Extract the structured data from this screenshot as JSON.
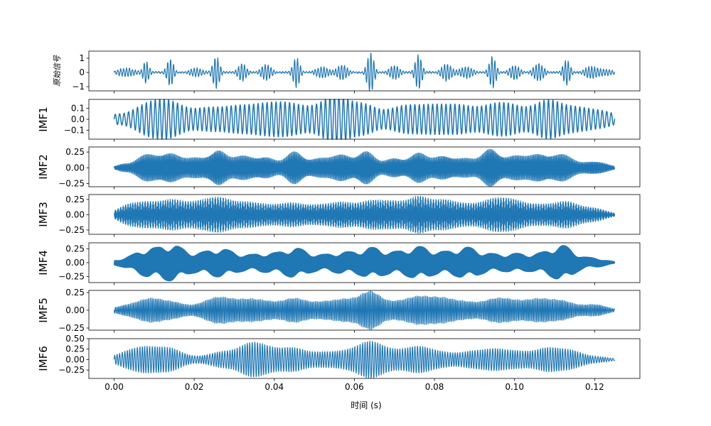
{
  "chart_data": {
    "type": "line",
    "line_color": "#1f77b4",
    "xlabel": "时间 (s)",
    "xlim": [
      -0.0063,
      0.1313
    ],
    "x_ticks": [
      0.0,
      0.02,
      0.04,
      0.06,
      0.08,
      0.1,
      0.12
    ],
    "x_tick_labels": [
      "0.00",
      "0.02",
      "0.04",
      "0.06",
      "0.08",
      "0.10",
      "0.12"
    ],
    "grid": false,
    "panels": [
      {
        "ylabel": "原始信号",
        "ylim": [
          -1.3,
          1.5
        ],
        "y_ticks": [
          -1,
          0,
          1
        ],
        "y_tick_labels": [
          "−1",
          "0",
          "1"
        ],
        "carrier_cycles": 170,
        "noise_level": 0.06,
        "bursts": [
          {
            "t": 0.003,
            "a": 0.3,
            "w": 0.002
          },
          {
            "t": 0.008,
            "a": 0.75,
            "w": 0.0007
          },
          {
            "t": 0.014,
            "a": 0.95,
            "w": 0.0008
          },
          {
            "t": 0.0205,
            "a": 0.3,
            "w": 0.0015
          },
          {
            "t": 0.0255,
            "a": 1.1,
            "w": 0.0008
          },
          {
            "t": 0.032,
            "a": 0.6,
            "w": 0.001
          },
          {
            "t": 0.038,
            "a": 0.55,
            "w": 0.0012
          },
          {
            "t": 0.0455,
            "a": 1.05,
            "w": 0.0008
          },
          {
            "t": 0.052,
            "a": 0.4,
            "w": 0.0015
          },
          {
            "t": 0.057,
            "a": 0.55,
            "w": 0.0012
          },
          {
            "t": 0.064,
            "a": 1.4,
            "w": 0.0008
          },
          {
            "t": 0.07,
            "a": 0.5,
            "w": 0.0012
          },
          {
            "t": 0.076,
            "a": 1.2,
            "w": 0.0008
          },
          {
            "t": 0.083,
            "a": 0.6,
            "w": 0.0012
          },
          {
            "t": 0.088,
            "a": 0.4,
            "w": 0.0015
          },
          {
            "t": 0.0945,
            "a": 1.1,
            "w": 0.0008
          },
          {
            "t": 0.1,
            "a": 0.5,
            "w": 0.0012
          },
          {
            "t": 0.106,
            "a": 0.6,
            "w": 0.0012
          },
          {
            "t": 0.113,
            "a": 0.9,
            "w": 0.0008
          },
          {
            "t": 0.119,
            "a": 0.4,
            "w": 0.0015
          },
          {
            "t": 0.123,
            "a": 0.2,
            "w": 0.002
          }
        ],
        "x_range": [
          0.0,
          0.125
        ]
      },
      {
        "ylabel": "IMF1",
        "ylim": [
          -0.18,
          0.18
        ],
        "y_ticks": [
          -0.1,
          0.0,
          0.1
        ],
        "y_tick_labels": [
          "−0.1",
          "0.0",
          "0.1"
        ],
        "carrier_cycles": 112,
        "noise_level": 0.0,
        "bursts": [
          {
            "t": 0.0,
            "a": 0.03,
            "w": 0.002
          },
          {
            "t": 0.0085,
            "a": 0.13,
            "w": 0.004
          },
          {
            "t": 0.0145,
            "a": 0.12,
            "w": 0.0035
          },
          {
            "t": 0.023,
            "a": 0.09,
            "w": 0.0035
          },
          {
            "t": 0.03,
            "a": 0.09,
            "w": 0.0035
          },
          {
            "t": 0.037,
            "a": 0.11,
            "w": 0.004
          },
          {
            "t": 0.044,
            "a": 0.12,
            "w": 0.004
          },
          {
            "t": 0.053,
            "a": 0.1,
            "w": 0.004
          },
          {
            "t": 0.056,
            "a": 0.13,
            "w": 0.003
          },
          {
            "t": 0.0625,
            "a": 0.12,
            "w": 0.003
          },
          {
            "t": 0.072,
            "a": 0.11,
            "w": 0.004
          },
          {
            "t": 0.08,
            "a": 0.11,
            "w": 0.004
          },
          {
            "t": 0.087,
            "a": 0.1,
            "w": 0.0035
          },
          {
            "t": 0.095,
            "a": 0.12,
            "w": 0.0035
          },
          {
            "t": 0.1,
            "a": 0.08,
            "w": 0.003
          },
          {
            "t": 0.108,
            "a": 0.16,
            "w": 0.0035
          },
          {
            "t": 0.116,
            "a": 0.1,
            "w": 0.004
          },
          {
            "t": 0.123,
            "a": 0.05,
            "w": 0.003
          }
        ],
        "x_range": [
          0.0,
          0.125
        ]
      },
      {
        "ylabel": "IMF2",
        "ylim": [
          -0.3,
          0.33
        ],
        "y_ticks": [
          -0.25,
          0.0,
          0.25
        ],
        "y_tick_labels": [
          "−0.25",
          "0.00",
          "0.25"
        ],
        "carrier_cycles": 400,
        "noise_level": 0.0,
        "bursts": [
          {
            "t": 0.002,
            "a": 0.05,
            "w": 0.0015
          },
          {
            "t": 0.008,
            "a": 0.2,
            "w": 0.0025
          },
          {
            "t": 0.014,
            "a": 0.22,
            "w": 0.0025
          },
          {
            "t": 0.0205,
            "a": 0.15,
            "w": 0.0025
          },
          {
            "t": 0.026,
            "a": 0.26,
            "w": 0.002
          },
          {
            "t": 0.032,
            "a": 0.18,
            "w": 0.0025
          },
          {
            "t": 0.038,
            "a": 0.16,
            "w": 0.0025
          },
          {
            "t": 0.045,
            "a": 0.25,
            "w": 0.002
          },
          {
            "t": 0.051,
            "a": 0.14,
            "w": 0.0025
          },
          {
            "t": 0.057,
            "a": 0.2,
            "w": 0.0025
          },
          {
            "t": 0.063,
            "a": 0.25,
            "w": 0.002
          },
          {
            "t": 0.07,
            "a": 0.15,
            "w": 0.0025
          },
          {
            "t": 0.076,
            "a": 0.22,
            "w": 0.002
          },
          {
            "t": 0.082,
            "a": 0.18,
            "w": 0.0025
          },
          {
            "t": 0.088,
            "a": 0.14,
            "w": 0.0025
          },
          {
            "t": 0.094,
            "a": 0.29,
            "w": 0.002
          },
          {
            "t": 0.1,
            "a": 0.18,
            "w": 0.0025
          },
          {
            "t": 0.106,
            "a": 0.2,
            "w": 0.0025
          },
          {
            "t": 0.112,
            "a": 0.2,
            "w": 0.0025
          },
          {
            "t": 0.12,
            "a": 0.1,
            "w": 0.003
          }
        ],
        "x_range": [
          0.0,
          0.125
        ]
      },
      {
        "ylabel": "IMF3",
        "ylim": [
          -0.32,
          0.33
        ],
        "y_ticks": [
          -0.25,
          0.0,
          0.25
        ],
        "y_tick_labels": [
          "−0.25",
          "0.00",
          "0.25"
        ],
        "carrier_cycles": 1100,
        "noise_level": 0.0,
        "bursts": [
          {
            "t": 0.003,
            "a": 0.12,
            "w": 0.0025
          },
          {
            "t": 0.008,
            "a": 0.18,
            "w": 0.003
          },
          {
            "t": 0.0145,
            "a": 0.22,
            "w": 0.003
          },
          {
            "t": 0.021,
            "a": 0.17,
            "w": 0.003
          },
          {
            "t": 0.0265,
            "a": 0.24,
            "w": 0.003
          },
          {
            "t": 0.033,
            "a": 0.17,
            "w": 0.003
          },
          {
            "t": 0.0385,
            "a": 0.12,
            "w": 0.003
          },
          {
            "t": 0.0445,
            "a": 0.17,
            "w": 0.003
          },
          {
            "t": 0.051,
            "a": 0.13,
            "w": 0.003
          },
          {
            "t": 0.057,
            "a": 0.18,
            "w": 0.003
          },
          {
            "t": 0.064,
            "a": 0.2,
            "w": 0.003
          },
          {
            "t": 0.07,
            "a": 0.19,
            "w": 0.003
          },
          {
            "t": 0.076,
            "a": 0.25,
            "w": 0.0025
          },
          {
            "t": 0.082,
            "a": 0.22,
            "w": 0.003
          },
          {
            "t": 0.088,
            "a": 0.14,
            "w": 0.003
          },
          {
            "t": 0.0945,
            "a": 0.22,
            "w": 0.003
          },
          {
            "t": 0.1,
            "a": 0.2,
            "w": 0.003
          },
          {
            "t": 0.1065,
            "a": 0.14,
            "w": 0.003
          },
          {
            "t": 0.113,
            "a": 0.2,
            "w": 0.003
          },
          {
            "t": 0.12,
            "a": 0.1,
            "w": 0.003
          }
        ],
        "x_range": [
          0.0,
          0.125
        ]
      },
      {
        "ylabel": "IMF4",
        "ylim": [
          -0.36,
          0.36
        ],
        "y_ticks": [
          -0.25,
          0.0,
          0.25
        ],
        "y_tick_labels": [
          "−0.25",
          "0.00",
          "0.25"
        ],
        "carrier_cycles": 1600,
        "noise_level": 0.0,
        "bursts": [
          {
            "t": 0.002,
            "a": 0.05,
            "w": 0.003
          },
          {
            "t": 0.008,
            "a": 0.22,
            "w": 0.003
          },
          {
            "t": 0.0145,
            "a": 0.3,
            "w": 0.003
          },
          {
            "t": 0.021,
            "a": 0.12,
            "w": 0.003
          },
          {
            "t": 0.0265,
            "a": 0.22,
            "w": 0.003
          },
          {
            "t": 0.032,
            "a": 0.1,
            "w": 0.003
          },
          {
            "t": 0.038,
            "a": 0.15,
            "w": 0.003
          },
          {
            "t": 0.045,
            "a": 0.25,
            "w": 0.003
          },
          {
            "t": 0.051,
            "a": 0.1,
            "w": 0.003
          },
          {
            "t": 0.057,
            "a": 0.17,
            "w": 0.003
          },
          {
            "t": 0.064,
            "a": 0.25,
            "w": 0.003
          },
          {
            "t": 0.07,
            "a": 0.14,
            "w": 0.003
          },
          {
            "t": 0.076,
            "a": 0.26,
            "w": 0.003
          },
          {
            "t": 0.082,
            "a": 0.14,
            "w": 0.003
          },
          {
            "t": 0.088,
            "a": 0.25,
            "w": 0.003
          },
          {
            "t": 0.094,
            "a": 0.12,
            "w": 0.003
          },
          {
            "t": 0.1,
            "a": 0.14,
            "w": 0.003
          },
          {
            "t": 0.106,
            "a": 0.12,
            "w": 0.003
          },
          {
            "t": 0.112,
            "a": 0.3,
            "w": 0.003
          },
          {
            "t": 0.12,
            "a": 0.08,
            "w": 0.003
          }
        ],
        "x_range": [
          0.0,
          0.125
        ]
      },
      {
        "ylabel": "IMF5",
        "ylim": [
          -0.28,
          0.28
        ],
        "y_ticks": [
          -0.25,
          0.0,
          0.25
        ],
        "y_tick_labels": [
          "−0.25",
          "0.00",
          "0.25"
        ],
        "carrier_cycles": 2100,
        "noise_level": 0.0,
        "bursts": [
          {
            "t": 0.003,
            "a": 0.06,
            "w": 0.003
          },
          {
            "t": 0.009,
            "a": 0.15,
            "w": 0.003
          },
          {
            "t": 0.015,
            "a": 0.1,
            "w": 0.003
          },
          {
            "t": 0.023,
            "a": 0.08,
            "w": 0.003
          },
          {
            "t": 0.027,
            "a": 0.14,
            "w": 0.003
          },
          {
            "t": 0.033,
            "a": 0.12,
            "w": 0.003
          },
          {
            "t": 0.038,
            "a": 0.1,
            "w": 0.003
          },
          {
            "t": 0.045,
            "a": 0.16,
            "w": 0.003
          },
          {
            "t": 0.052,
            "a": 0.1,
            "w": 0.003
          },
          {
            "t": 0.058,
            "a": 0.14,
            "w": 0.003
          },
          {
            "t": 0.064,
            "a": 0.24,
            "w": 0.0025
          },
          {
            "t": 0.07,
            "a": 0.1,
            "w": 0.003
          },
          {
            "t": 0.076,
            "a": 0.17,
            "w": 0.003
          },
          {
            "t": 0.082,
            "a": 0.15,
            "w": 0.003
          },
          {
            "t": 0.088,
            "a": 0.1,
            "w": 0.003
          },
          {
            "t": 0.095,
            "a": 0.14,
            "w": 0.003
          },
          {
            "t": 0.1,
            "a": 0.1,
            "w": 0.003
          },
          {
            "t": 0.106,
            "a": 0.14,
            "w": 0.003
          },
          {
            "t": 0.112,
            "a": 0.12,
            "w": 0.003
          },
          {
            "t": 0.12,
            "a": 0.08,
            "w": 0.003
          }
        ],
        "x_range": [
          0.0,
          0.125
        ]
      },
      {
        "ylabel": "IMF6",
        "ylim": [
          -0.45,
          0.5
        ],
        "y_ticks": [
          -0.25,
          0.0,
          0.25
        ],
        "y_tick_labels": [
          "−0.25",
          "0.00",
          "0.25"
        ],
        "y_tick_labels_extra": {
          "values": [
            0.5
          ],
          "labels": [
            "0.50"
          ]
        },
        "carrier_cycles": 2600,
        "noise_level": 0.0,
        "bursts": [
          {
            "t": 0.003,
            "a": 0.15,
            "w": 0.003
          },
          {
            "t": 0.008,
            "a": 0.25,
            "w": 0.003
          },
          {
            "t": 0.014,
            "a": 0.25,
            "w": 0.003
          },
          {
            "t": 0.021,
            "a": 0.05,
            "w": 0.003
          },
          {
            "t": 0.027,
            "a": 0.17,
            "w": 0.003
          },
          {
            "t": 0.034,
            "a": 0.35,
            "w": 0.003
          },
          {
            "t": 0.039,
            "a": 0.2,
            "w": 0.003
          },
          {
            "t": 0.045,
            "a": 0.25,
            "w": 0.003
          },
          {
            "t": 0.052,
            "a": 0.15,
            "w": 0.003
          },
          {
            "t": 0.058,
            "a": 0.17,
            "w": 0.003
          },
          {
            "t": 0.064,
            "a": 0.4,
            "w": 0.003
          },
          {
            "t": 0.07,
            "a": 0.17,
            "w": 0.003
          },
          {
            "t": 0.076,
            "a": 0.28,
            "w": 0.003
          },
          {
            "t": 0.082,
            "a": 0.15,
            "w": 0.003
          },
          {
            "t": 0.089,
            "a": 0.17,
            "w": 0.003
          },
          {
            "t": 0.095,
            "a": 0.22,
            "w": 0.003
          },
          {
            "t": 0.101,
            "a": 0.17,
            "w": 0.003
          },
          {
            "t": 0.108,
            "a": 0.25,
            "w": 0.003
          },
          {
            "t": 0.114,
            "a": 0.2,
            "w": 0.003
          },
          {
            "t": 0.121,
            "a": 0.06,
            "w": 0.003
          }
        ],
        "x_range": [
          0.0,
          0.125
        ]
      }
    ]
  }
}
